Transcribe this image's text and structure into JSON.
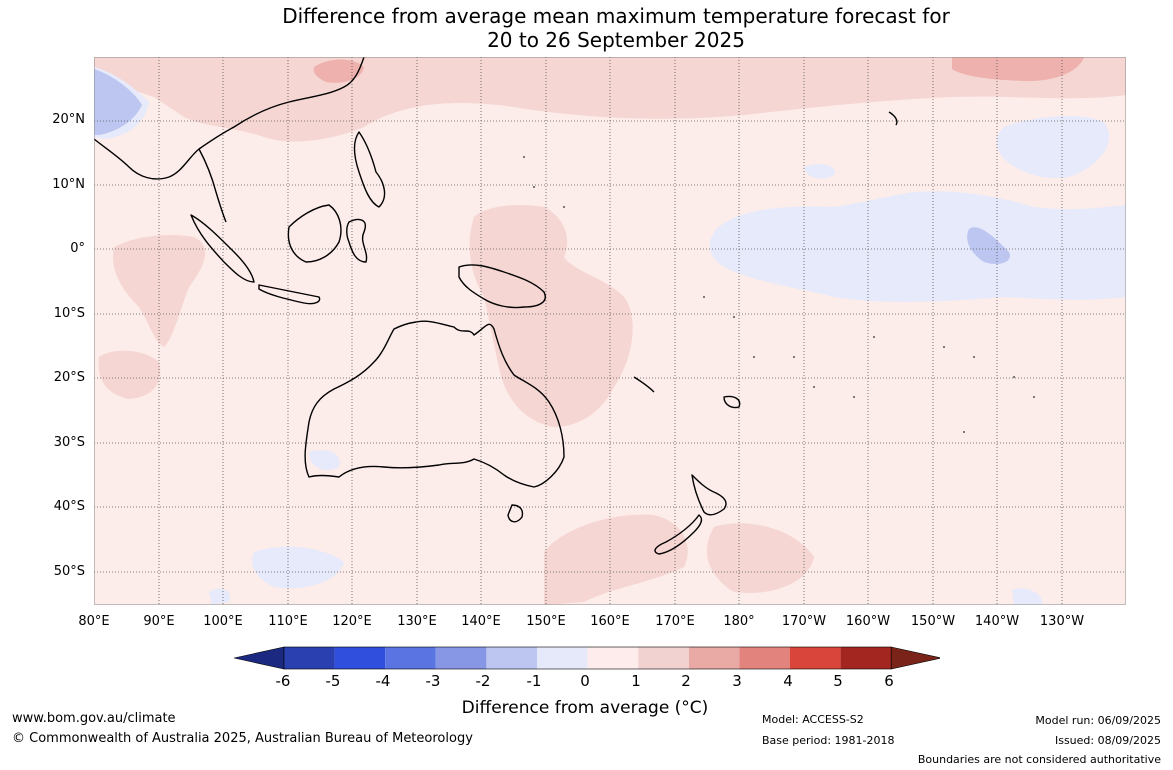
{
  "title_line1": "Difference from average mean maximum temperature forecast for",
  "title_line2": "20 to 26 September 2025",
  "latitude_labels": [
    "20°N",
    "10°N",
    "0°",
    "10°S",
    "20°S",
    "30°S",
    "40°S",
    "50°S"
  ],
  "longitude_labels": [
    "80°E",
    "90°E",
    "100°E",
    "110°E",
    "120°E",
    "130°E",
    "140°E",
    "150°E",
    "160°E",
    "170°E",
    "180°",
    "170°W",
    "160°W",
    "150°W",
    "140°W",
    "130°W"
  ],
  "colorbar": {
    "ticks": [
      "-6",
      "-5",
      "-4",
      "-3",
      "-2",
      "-1",
      "0",
      "1",
      "2",
      "3",
      "4",
      "5",
      "6"
    ],
    "colors": [
      "#1b2a80",
      "#2a3fb0",
      "#2f4fdc",
      "#5a74e2",
      "#8797e6",
      "#bcc6f0",
      "#e6e9fa",
      "#fdeceb",
      "#f2d2d0",
      "#e9aaa6",
      "#e3837d",
      "#d9453a",
      "#a32720",
      "#7a2419"
    ],
    "title": "Difference from average (°C)"
  },
  "footer": {
    "website": "www.bom.gov.au/climate",
    "copyright": "© Commonwealth of Australia 2025, Australian Bureau of Meteorology",
    "model": "Model: ACCESS-S2",
    "base_period": "Base period: 1981-2018",
    "model_run": "Model run: 06/09/2025",
    "issued": "Issued: 08/09/2025",
    "disclaimer": "Boundaries are not considered authoritative"
  }
}
